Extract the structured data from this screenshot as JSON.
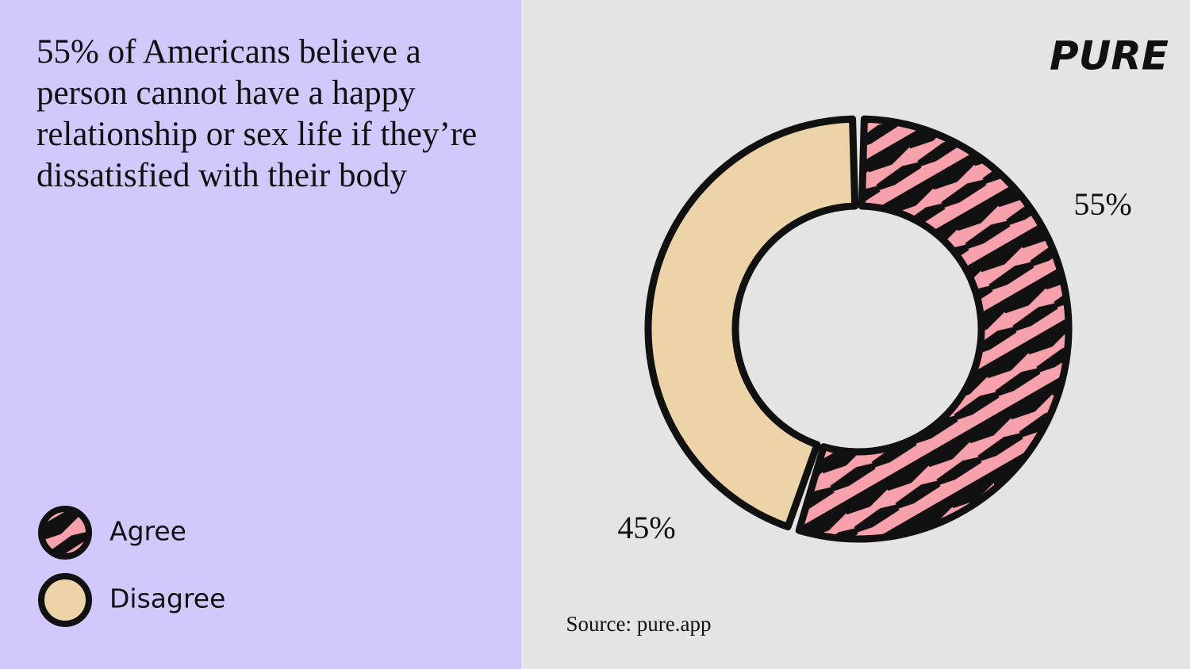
{
  "chart_data": {
    "type": "pie",
    "title": "55% of Americans believe a person cannot have a happy relationship or sex life if they’re dissatisfied with their body",
    "brand": "PURE",
    "categories": [
      "Agree",
      "Disagree"
    ],
    "values": [
      55,
      45
    ],
    "value_labels": [
      "55%",
      "45%"
    ],
    "colors": [
      "#f7a1ad",
      "#edd3a8"
    ],
    "source": "Source: pure.app"
  }
}
